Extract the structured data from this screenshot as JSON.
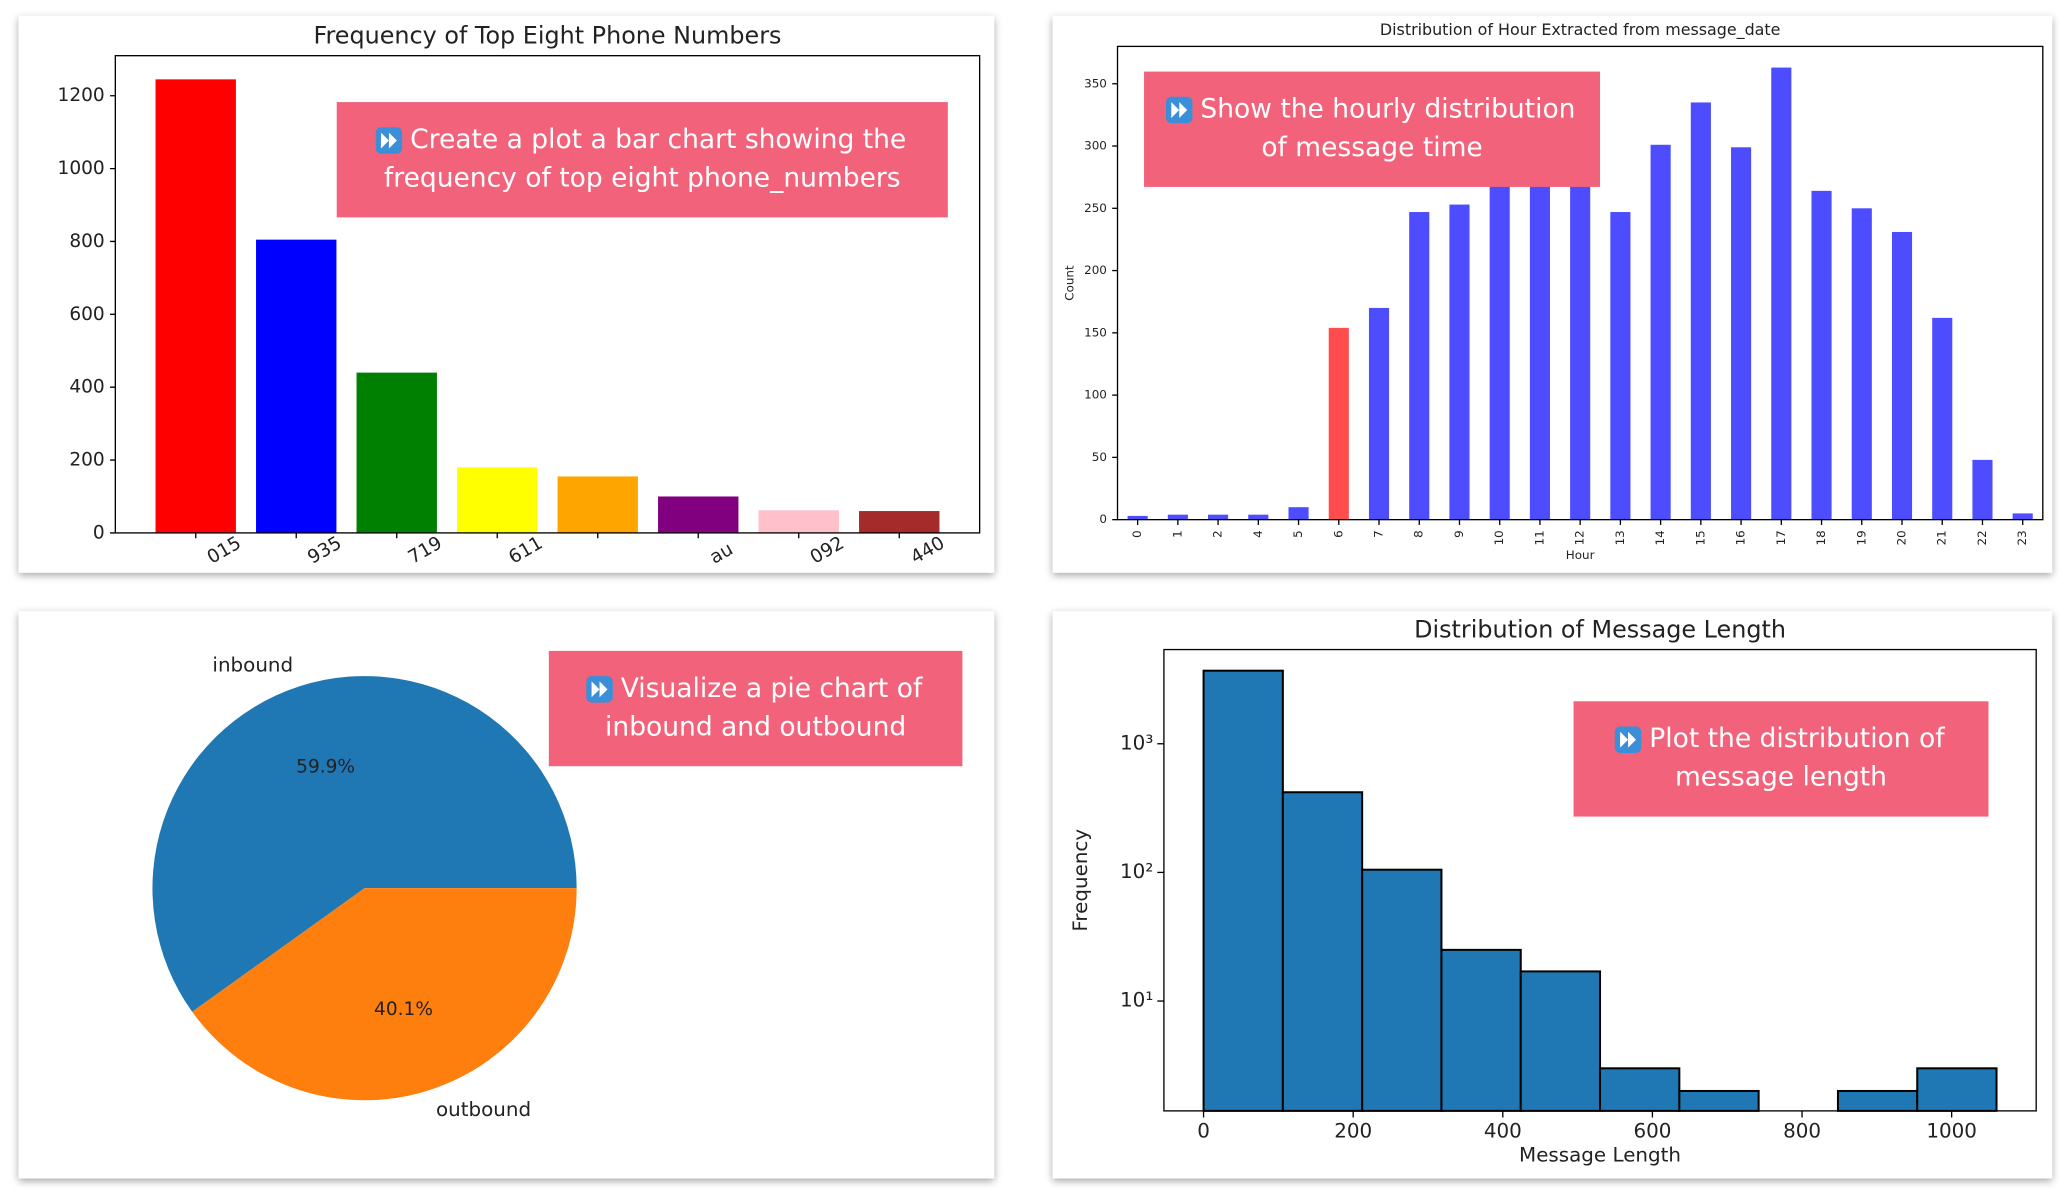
{
  "chart_data": [
    {
      "type": "bar",
      "title": "Frequency of Top Eight Phone Numbers",
      "annotation": [
        "Create a plot a bar chart showing the",
        "frequency of top eight phone_numbers"
      ],
      "categories": [
        "015",
        "935",
        "719",
        "611",
        null,
        "au",
        "092",
        "440"
      ],
      "values": [
        1245,
        805,
        440,
        180,
        155,
        100,
        62,
        60
      ],
      "colors": [
        "#ff0000",
        "#0000ff",
        "#008000",
        "#ffff00",
        "#ffa500",
        "#800080",
        "#ffc0cb",
        "#a52a2a"
      ],
      "ylim": [
        0,
        1310
      ],
      "yticks": [
        0,
        200,
        400,
        600,
        800,
        1000,
        1200
      ],
      "grid": false
    },
    {
      "type": "bar",
      "title": "Distribution of Hour Extracted from message_date",
      "annotation": [
        "Show the hourly distribution",
        "of message time"
      ],
      "xlabel": "Hour",
      "ylabel": "Count",
      "categories": [
        "0",
        "1",
        "2",
        "4",
        "5",
        "6",
        "7",
        "8",
        "9",
        "10",
        "11",
        "12",
        "13",
        "14",
        "15",
        "16",
        "17",
        "18",
        "19",
        "20",
        "21",
        "22",
        "23"
      ],
      "values": [
        3,
        4,
        4,
        4,
        10,
        154,
        170,
        247,
        253,
        268,
        270,
        268,
        247,
        301,
        335,
        299,
        363,
        264,
        250,
        231,
        162,
        48,
        5
      ],
      "colors": [
        "#4d4dff",
        "#4d4dff",
        "#4d4dff",
        "#4d4dff",
        "#4d4dff",
        "#ff4d4d",
        "#4d4dff",
        "#4d4dff",
        "#4d4dff",
        "#4d4dff",
        "#4d4dff",
        "#4d4dff",
        "#4d4dff",
        "#4d4dff",
        "#4d4dff",
        "#4d4dff",
        "#4d4dff",
        "#4d4dff",
        "#4d4dff",
        "#4d4dff",
        "#4d4dff",
        "#4d4dff",
        "#4d4dff"
      ],
      "ylim": [
        0,
        380
      ],
      "yticks": [
        0,
        50,
        100,
        150,
        200,
        250,
        300,
        350
      ],
      "grid": false
    },
    {
      "type": "pie",
      "annotation": [
        "Visualize a pie chart of",
        "inbound and outbound"
      ],
      "categories": [
        "inbound",
        "outbound"
      ],
      "values": [
        59.9,
        40.1
      ],
      "value_labels": [
        "59.9%",
        "40.1%"
      ],
      "colors": [
        "#1f77b4",
        "#ff7f0e"
      ]
    },
    {
      "type": "histogram",
      "title": "Distribution of Message Length",
      "annotation": [
        "Plot the distribution of",
        "message length"
      ],
      "xlabel": "Message Length",
      "ylabel": "Frequency",
      "bins": [
        0,
        106,
        212,
        318,
        424,
        530,
        636,
        742,
        848,
        954,
        1060
      ],
      "values": [
        3700,
        420,
        105,
        25,
        17,
        3,
        2,
        0,
        2,
        3
      ],
      "color": "#1f77b4",
      "edgecolor": "#000000",
      "log_y": true,
      "xlim": [
        -53,
        1113
      ],
      "xticks": [
        0,
        200,
        400,
        600,
        800,
        1000
      ],
      "ylim": [
        1.4,
        5400
      ],
      "yticks": [
        {
          "value": 10,
          "label": "10¹"
        },
        {
          "value": 100,
          "label": "10²"
        },
        {
          "value": 1000,
          "label": "10³"
        }
      ]
    }
  ]
}
